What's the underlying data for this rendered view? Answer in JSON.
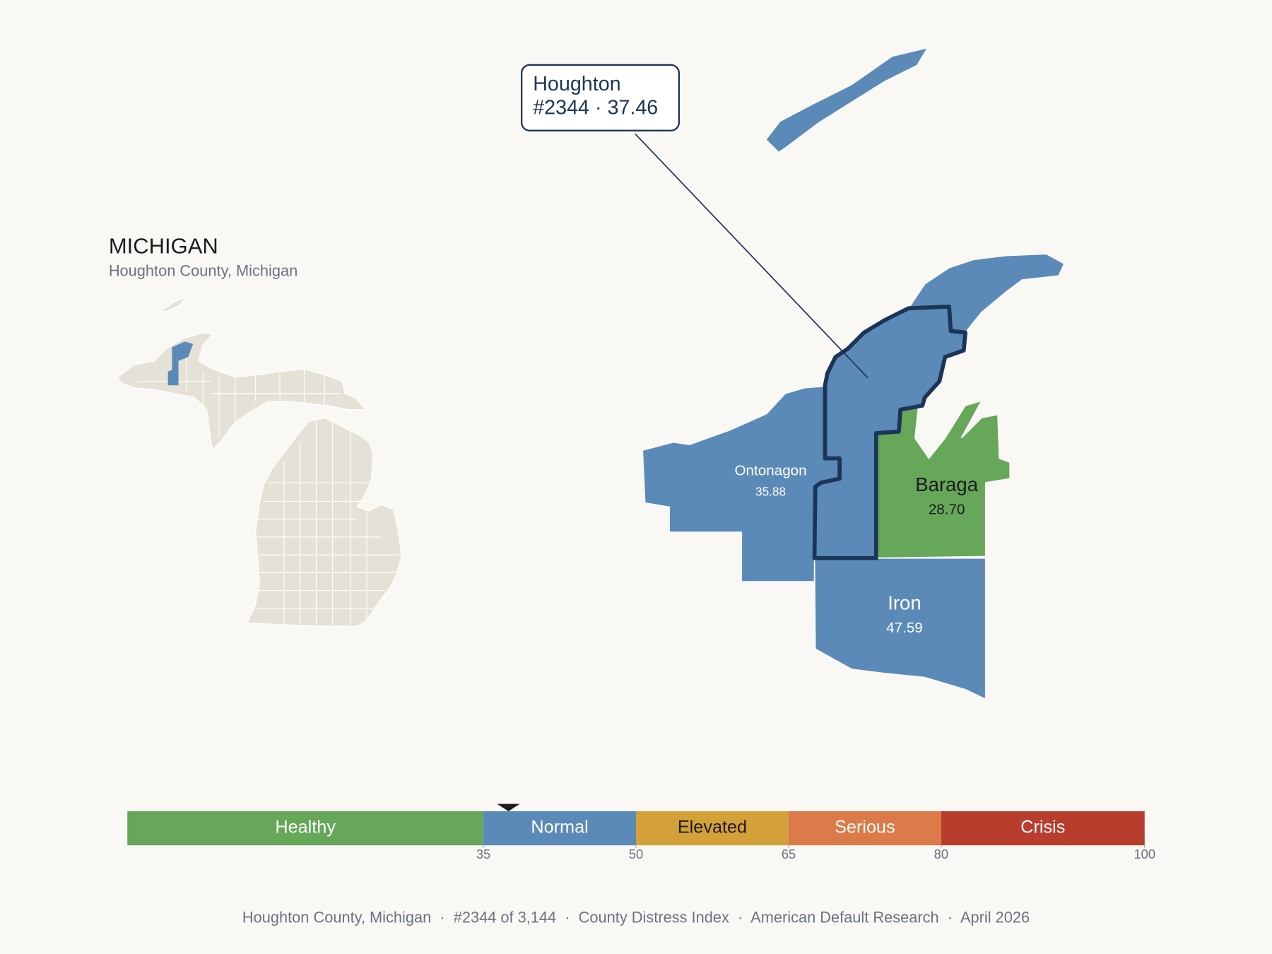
{
  "header": {
    "title": "MICHIGAN",
    "subtitle": "Houghton County, Michigan"
  },
  "callout": {
    "name": "Houghton",
    "detail": "#2344 · 37.46"
  },
  "counties": [
    {
      "name": "Ontonagon",
      "value": "35.88"
    },
    {
      "name": "Baraga",
      "value": "28.70"
    },
    {
      "name": "Iron",
      "value": "47.59"
    }
  ],
  "scale": {
    "xlim": [
      0,
      100
    ],
    "ticks": [
      35,
      50,
      65,
      80,
      100
    ],
    "bands": [
      {
        "label": "Healthy",
        "color": "#66a75a",
        "text_color": "#ffffff"
      },
      {
        "label": "Normal",
        "color": "#5b8ab8",
        "text_color": "#ffffff"
      },
      {
        "label": "Elevated",
        "color": "#d4a03a",
        "text_color": "#1c1c1c"
      },
      {
        "label": "Serious",
        "color": "#dc7a4a",
        "text_color": "#ffffff"
      },
      {
        "label": "Crisis",
        "color": "#b83d2d",
        "text_color": "#ffffff"
      }
    ],
    "marker": 37.46
  },
  "footer": "Houghton County, Michigan  ·  #2344 of 3,144  ·  County Distress Index  ·  American Default Research  ·  April 2026"
}
